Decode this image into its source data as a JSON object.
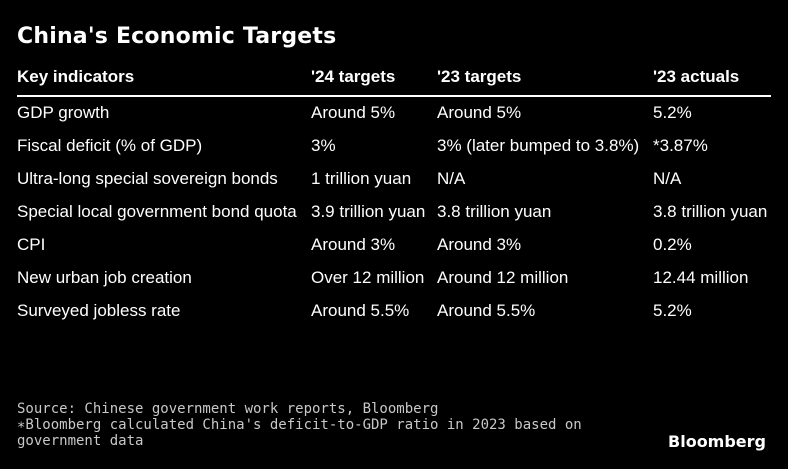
{
  "chart_data": {
    "type": "table",
    "title": "China's Economic Targets",
    "columns": [
      "Key indicators",
      "'24 targets",
      "'23 targets",
      "'23 actuals"
    ],
    "rows": [
      [
        "GDP growth",
        "Around 5%",
        "Around 5%",
        "5.2%"
      ],
      [
        "Fiscal deficit (% of GDP)",
        "3%",
        "3% (later bumped to 3.8%)",
        "*3.87%"
      ],
      [
        "Ultra-long special sovereign bonds",
        "1 trillion yuan",
        "N/A",
        "N/A"
      ],
      [
        "Special local government bond quota",
        "3.9 trillion yuan",
        "3.8 trillion yuan",
        "3.8 trillion yuan"
      ],
      [
        "CPI",
        "Around 3%",
        "Around 3%",
        "0.2%"
      ],
      [
        "New urban job creation",
        "Over 12 million",
        "Around 12 million",
        "12.44 million"
      ],
      [
        "Surveyed jobless rate",
        "Around 5.5%",
        "Around 5.5%",
        "5.2%"
      ]
    ]
  },
  "footer": {
    "source": "Source: Chinese government work reports, Bloomberg",
    "note": "∗Bloomberg calculated China's deficit-to-GDP ratio in 2023 based on government data",
    "brand": "Bloomberg"
  }
}
